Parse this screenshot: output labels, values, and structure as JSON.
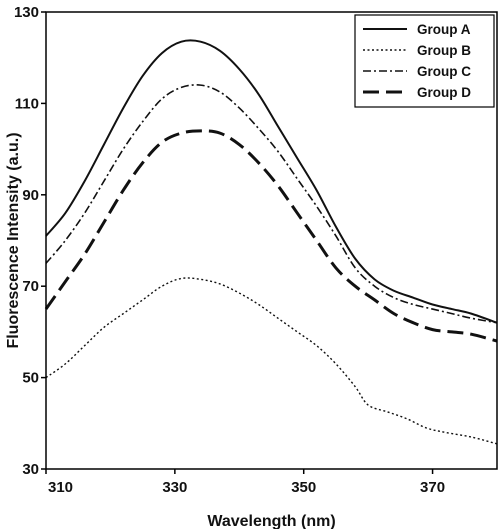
{
  "chart_data": {
    "type": "line",
    "title": "",
    "xlabel": "Wavelength (nm)",
    "ylabel": "Fluorescence Intensity (a.u.)",
    "xlim": [
      310,
      380
    ],
    "ylim": [
      30,
      130
    ],
    "xticks": [
      310,
      330,
      350,
      370
    ],
    "yticks": [
      30,
      50,
      70,
      90,
      110,
      130
    ],
    "grid": false,
    "legend_position": "top-right",
    "series": [
      {
        "name": "Group A",
        "style": "solid",
        "stroke_width": 2,
        "points": [
          [
            310,
            81
          ],
          [
            313,
            86
          ],
          [
            316,
            93
          ],
          [
            319,
            101
          ],
          [
            322,
            109
          ],
          [
            325,
            116
          ],
          [
            328,
            121
          ],
          [
            331,
            123.5
          ],
          [
            334,
            123.5
          ],
          [
            337,
            121.5
          ],
          [
            340,
            117.5
          ],
          [
            343,
            112
          ],
          [
            346,
            105
          ],
          [
            349,
            98
          ],
          [
            352,
            91
          ],
          [
            355,
            83
          ],
          [
            358,
            76
          ],
          [
            361,
            71.5
          ],
          [
            364,
            69
          ],
          [
            367,
            67.5
          ],
          [
            370,
            66
          ],
          [
            373,
            65
          ],
          [
            376,
            64
          ],
          [
            380,
            62
          ]
        ]
      },
      {
        "name": "Group B",
        "style": "dotted",
        "stroke_width": 1.4,
        "points": [
          [
            310,
            50
          ],
          [
            313,
            53
          ],
          [
            316,
            57
          ],
          [
            319,
            61
          ],
          [
            322,
            64
          ],
          [
            325,
            67
          ],
          [
            328,
            70
          ],
          [
            331,
            71.7
          ],
          [
            334,
            71.5
          ],
          [
            337,
            70.5
          ],
          [
            340,
            68.5
          ],
          [
            343,
            66
          ],
          [
            346,
            63
          ],
          [
            349,
            60
          ],
          [
            352,
            57
          ],
          [
            355,
            53
          ],
          [
            358,
            48
          ],
          [
            360,
            44
          ],
          [
            363,
            42.5
          ],
          [
            366,
            41
          ],
          [
            369,
            39
          ],
          [
            372,
            38
          ],
          [
            376,
            37
          ],
          [
            380,
            35.5
          ]
        ]
      },
      {
        "name": "Group C",
        "style": "dash-dot",
        "stroke_width": 1.6,
        "points": [
          [
            310,
            75
          ],
          [
            313,
            80
          ],
          [
            316,
            86
          ],
          [
            319,
            93
          ],
          [
            322,
            100
          ],
          [
            325,
            106
          ],
          [
            328,
            111
          ],
          [
            331,
            113.5
          ],
          [
            334,
            114
          ],
          [
            337,
            112.5
          ],
          [
            340,
            109
          ],
          [
            343,
            104.5
          ],
          [
            346,
            99.5
          ],
          [
            349,
            93.5
          ],
          [
            352,
            87.5
          ],
          [
            355,
            81
          ],
          [
            358,
            74
          ],
          [
            361,
            70
          ],
          [
            364,
            67.5
          ],
          [
            367,
            66
          ],
          [
            370,
            65
          ],
          [
            373,
            64
          ],
          [
            376,
            63
          ],
          [
            380,
            62
          ]
        ]
      },
      {
        "name": "Group D",
        "style": "long-dash",
        "stroke_width": 3,
        "points": [
          [
            310,
            65
          ],
          [
            313,
            71
          ],
          [
            316,
            77
          ],
          [
            319,
            84
          ],
          [
            322,
            91
          ],
          [
            325,
            97
          ],
          [
            328,
            101.5
          ],
          [
            331,
            103.5
          ],
          [
            334,
            104
          ],
          [
            337,
            103.5
          ],
          [
            340,
            101
          ],
          [
            343,
            97
          ],
          [
            346,
            92
          ],
          [
            349,
            86
          ],
          [
            352,
            80
          ],
          [
            355,
            74
          ],
          [
            358,
            70
          ],
          [
            361,
            67
          ],
          [
            364,
            64
          ],
          [
            367,
            62
          ],
          [
            370,
            60.5
          ],
          [
            373,
            60
          ],
          [
            376,
            59.5
          ],
          [
            380,
            58
          ]
        ]
      }
    ]
  }
}
